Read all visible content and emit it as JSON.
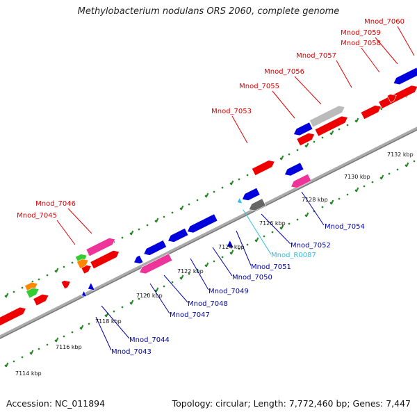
{
  "title": "Methylobacterium nodulans ORS 2060, complete genome",
  "footer": {
    "accession": "Accession: NC_011894",
    "summary": "Topology: circular; Length: 7,772,460 bp; Genes: 7,447"
  },
  "colors": {
    "forward_label": "#dd0000",
    "reverse_label": "#0000aa",
    "rna_label": "#33bbdd",
    "gene_red": "#ee0000",
    "gene_blue": "#0000dd",
    "gene_pink": "#ee3399",
    "gene_gray": "#bbbbbb",
    "gene_darkgray": "#666666",
    "gene_green": "#33cc33",
    "gene_orange": "#ff8800",
    "gene_cyan": "#33bbee",
    "dot_green": "#228822",
    "backbone": "#999999"
  },
  "scale_labels": [
    "7114 kbp",
    "7116 kbp",
    "7118 kbp",
    "7120 kbp",
    "7122 kbp",
    "7124 kbp",
    "7126 kbp",
    "7128 kbp",
    "7130 kbp",
    "7132 kbp"
  ],
  "forward_labels": [
    "Mnod_7060",
    "Mnod_7059",
    "Mnod_7058",
    "Mnod_7057",
    "Mnod_7056",
    "Mnod_7055",
    "Mnod_7053",
    "Mnod_7046",
    "Mnod_7045"
  ],
  "reverse_labels": [
    "Mnod_7054",
    "Mnod_7052",
    "Mnod_R0087",
    "Mnod_7051",
    "Mnod_7050",
    "Mnod_7049",
    "Mnod_7048",
    "Mnod_7047",
    "Mnod_7044",
    "Mnod_7043"
  ]
}
